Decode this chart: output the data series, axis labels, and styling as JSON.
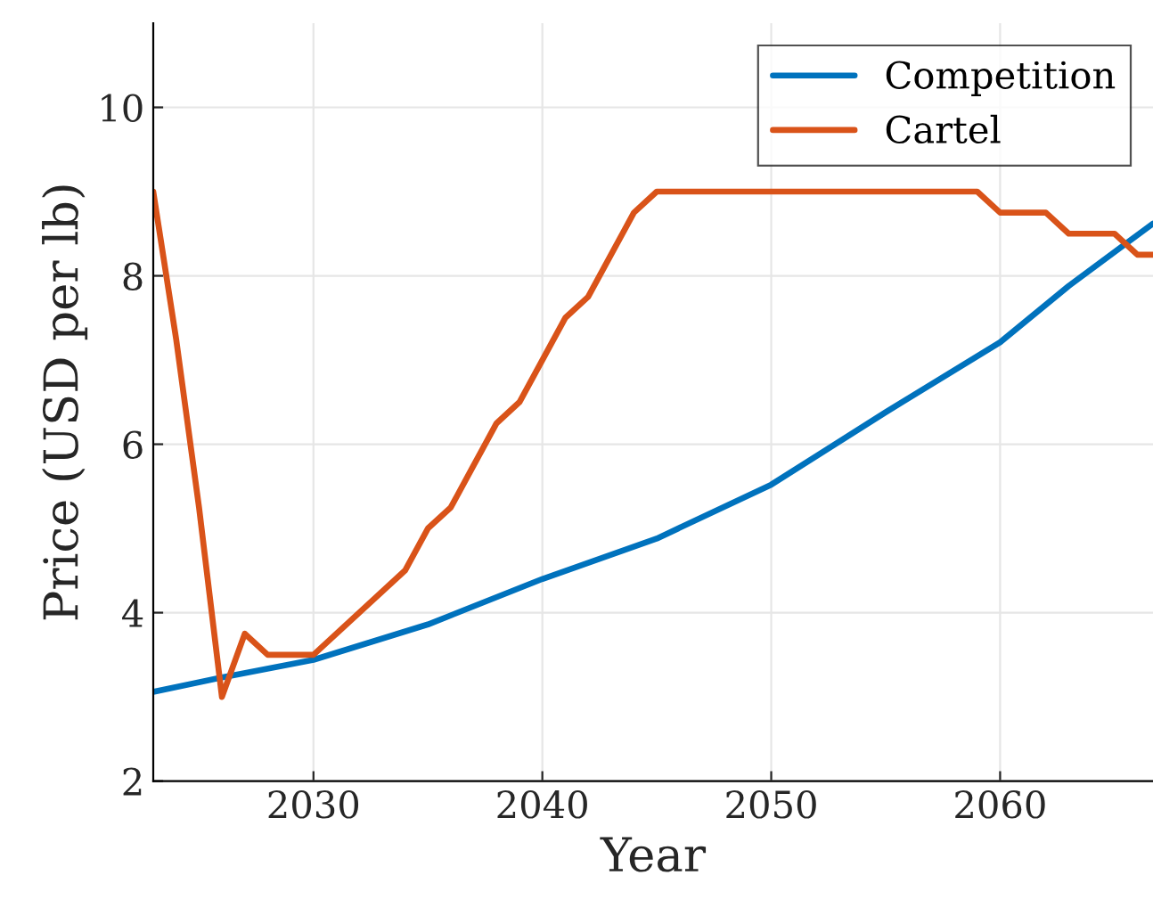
{
  "chart_data": {
    "type": "line",
    "xlabel": "Year",
    "ylabel": "Price (USD per lb)",
    "xlim": [
      2023,
      2066.68
    ],
    "xticks": [
      2030,
      2040,
      2050,
      2060
    ],
    "ylim": [
      2,
      11
    ],
    "yticks": [
      2,
      4,
      6,
      8,
      10
    ],
    "grid": true,
    "legend": "top right",
    "series": [
      {
        "name": "Competition",
        "color": "#0072bd",
        "x": [
          2023,
          2026,
          2030,
          2035,
          2040,
          2045,
          2050,
          2055,
          2060,
          2063,
          2066.68
        ],
        "values": [
          3.06,
          3.23,
          3.44,
          3.86,
          4.4,
          4.88,
          5.52,
          6.38,
          7.21,
          7.88,
          8.62
        ]
      },
      {
        "name": "Cartel",
        "color": "#d95319",
        "x": [
          2023,
          2024,
          2025,
          2026,
          2027,
          2028,
          2029,
          2030,
          2034,
          2035,
          2036,
          2037,
          2038,
          2039,
          2040,
          2041,
          2042,
          2043,
          2044,
          2045,
          2059,
          2060,
          2062,
          2063,
          2065,
          2066,
          2066.68
        ],
        "values": [
          9.0,
          7.25,
          5.25,
          3.0,
          3.75,
          3.5,
          3.5,
          3.5,
          4.5,
          5.0,
          5.25,
          5.75,
          6.25,
          6.5,
          7.0,
          7.5,
          7.75,
          8.25,
          8.75,
          9.0,
          9.0,
          8.75,
          8.75,
          8.5,
          8.5,
          8.25,
          8.25
        ]
      }
    ]
  }
}
